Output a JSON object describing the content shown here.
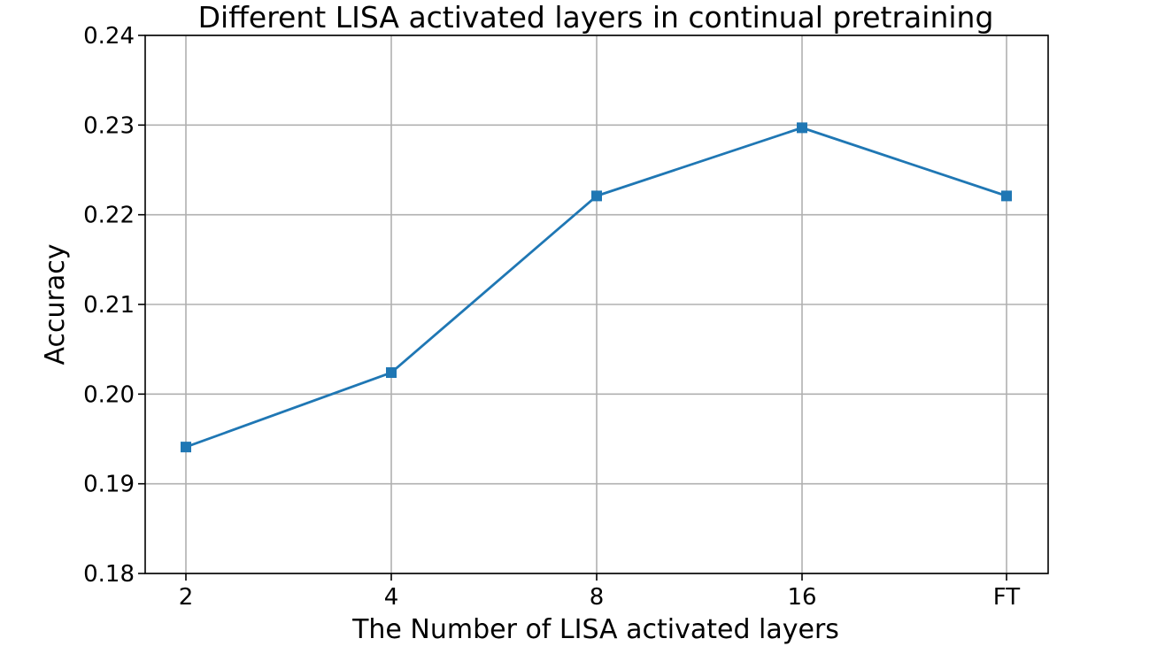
{
  "chart_data": {
    "type": "line",
    "title": "Different LISA activated layers in continual pretraining",
    "xlabel": "The Number of LISA activated layers",
    "ylabel": "Accuracy",
    "categories": [
      "2",
      "4",
      "8",
      "16",
      "FT"
    ],
    "series": [
      {
        "values": [
          0.1941,
          0.2024,
          0.2221,
          0.2297,
          0.2221
        ],
        "color": "#1f77b4",
        "marker": "square"
      }
    ],
    "ylim": [
      0.18,
      0.24
    ],
    "yticks": [
      "0.18",
      "0.19",
      "0.20",
      "0.21",
      "0.22",
      "0.23",
      "0.24"
    ],
    "grid": true,
    "legend": "none"
  }
}
